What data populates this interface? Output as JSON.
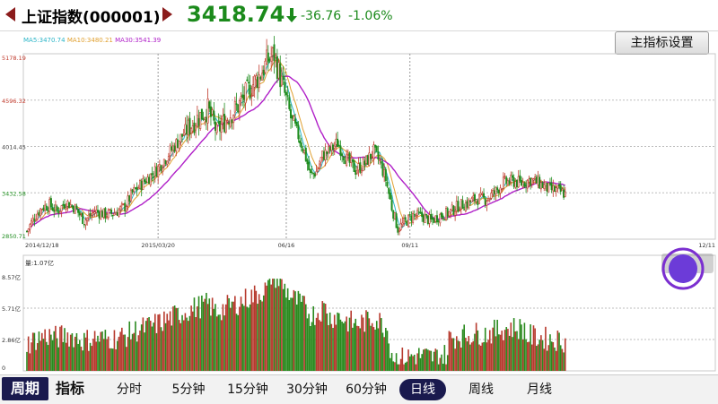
{
  "header": {
    "title": "上证指数(000001)",
    "price": "3418.74",
    "change": "-36.76",
    "change_pct": "-1.06%"
  },
  "ma_legend": {
    "ma5": "MA5:3470.74",
    "ma10": "MA10:3480.21",
    "ma30": "MA30:3541.39"
  },
  "buttons": {
    "main_indicator_settings": "主指标设置"
  },
  "price_chart": {
    "y_ticks": [
      "5178.19",
      "4596.32",
      "4014.45",
      "3432.58",
      "2850.71"
    ],
    "x_ticks": [
      "2014/12/18",
      "2015/03/20",
      "06/16",
      "09/11",
      "12/11"
    ]
  },
  "volume_chart": {
    "label": "量:1.07亿",
    "y_ticks": [
      "8.57亿",
      "5.71亿",
      "2.86亿",
      "0"
    ]
  },
  "bottom_bar": {
    "period_label": "周期",
    "indicator_label": "指标",
    "tabs": [
      {
        "label": "分时"
      },
      {
        "label": "5分钟"
      },
      {
        "label": "15分钟"
      },
      {
        "label": "30分钟"
      },
      {
        "label": "60分钟"
      },
      {
        "label": "日线",
        "active": true
      },
      {
        "label": "周线"
      },
      {
        "label": "月线"
      }
    ]
  },
  "colors": {
    "up": "#c0392b",
    "down": "#1e8c1e",
    "ma5": "#2bb5c8",
    "ma10": "#e0a030",
    "ma30": "#b020c8",
    "tab_active_bg": "#1a1a4e"
  },
  "chart_data": {
    "type": "candlestick",
    "x_start": "2014/12/18",
    "x_end": "12/11",
    "ylim": [
      2850.71,
      5178.19
    ],
    "y_ticks": [
      5178.19,
      4596.32,
      4014.45,
      3432.58,
      2850.71
    ],
    "x_ticks": [
      "2014/12/18",
      "2015/03/20",
      "06/16",
      "09/11",
      "12/11"
    ],
    "close_anchors": [
      [
        0,
        2950
      ],
      [
        5,
        3130
      ],
      [
        10,
        3250
      ],
      [
        15,
        3280
      ],
      [
        20,
        3200
      ],
      [
        26,
        3320
      ],
      [
        32,
        3240
      ],
      [
        38,
        3080
      ],
      [
        45,
        3200
      ],
      [
        52,
        3160
      ],
      [
        58,
        3180
      ],
      [
        65,
        3260
      ],
      [
        70,
        3430
      ],
      [
        78,
        3580
      ],
      [
        86,
        3720
      ],
      [
        95,
        3950
      ],
      [
        105,
        4200
      ],
      [
        112,
        4350
      ],
      [
        120,
        4480
      ],
      [
        126,
        4200
      ],
      [
        133,
        4380
      ],
      [
        140,
        4520
      ],
      [
        147,
        4720
      ],
      [
        154,
        4900
      ],
      [
        160,
        5100
      ],
      [
        164,
        5170
      ],
      [
        168,
        4880
      ],
      [
        172,
        4600
      ],
      [
        176,
        4300
      ],
      [
        180,
        4150
      ],
      [
        184,
        3950
      ],
      [
        188,
        3650
      ],
      [
        192,
        3700
      ],
      [
        196,
        3900
      ],
      [
        200,
        3950
      ],
      [
        206,
        4060
      ],
      [
        212,
        3850
      ],
      [
        218,
        3720
      ],
      [
        224,
        3800
      ],
      [
        230,
        3950
      ],
      [
        234,
        3820
      ],
      [
        238,
        3600
      ],
      [
        242,
        3250
      ],
      [
        246,
        2980
      ],
      [
        250,
        3050
      ],
      [
        256,
        3150
      ],
      [
        262,
        3140
      ],
      [
        268,
        3080
      ],
      [
        274,
        3150
      ],
      [
        280,
        3180
      ],
      [
        286,
        3270
      ],
      [
        292,
        3300
      ],
      [
        298,
        3360
      ],
      [
        304,
        3350
      ],
      [
        310,
        3430
      ],
      [
        316,
        3560
      ],
      [
        322,
        3580
      ],
      [
        328,
        3550
      ],
      [
        334,
        3600
      ],
      [
        340,
        3550
      ],
      [
        346,
        3480
      ],
      [
        352,
        3460
      ],
      [
        357,
        3420
      ]
    ],
    "volume_max": 8.57
  }
}
